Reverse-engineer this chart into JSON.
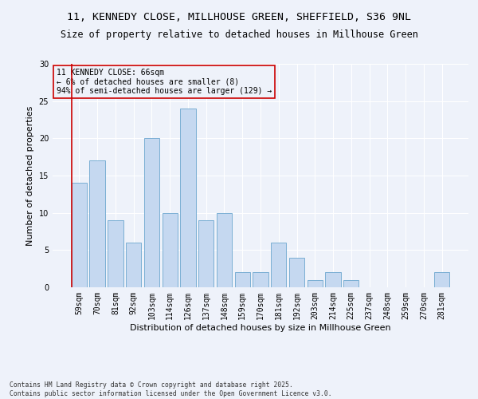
{
  "title1": "11, KENNEDY CLOSE, MILLHOUSE GREEN, SHEFFIELD, S36 9NL",
  "title2": "Size of property relative to detached houses in Millhouse Green",
  "xlabel": "Distribution of detached houses by size in Millhouse Green",
  "ylabel": "Number of detached properties",
  "categories": [
    "59sqm",
    "70sqm",
    "81sqm",
    "92sqm",
    "103sqm",
    "114sqm",
    "126sqm",
    "137sqm",
    "148sqm",
    "159sqm",
    "170sqm",
    "181sqm",
    "192sqm",
    "203sqm",
    "214sqm",
    "225sqm",
    "237sqm",
    "248sqm",
    "259sqm",
    "270sqm",
    "281sqm"
  ],
  "values": [
    14,
    17,
    9,
    6,
    20,
    10,
    24,
    9,
    10,
    2,
    2,
    6,
    4,
    1,
    2,
    1,
    0,
    0,
    0,
    0,
    2
  ],
  "bar_color": "#c5d8f0",
  "bar_edge_color": "#7bafd4",
  "vline_color": "#cc0000",
  "annotation_text": "11 KENNEDY CLOSE: 66sqm\n← 6% of detached houses are smaller (8)\n94% of semi-detached houses are larger (129) →",
  "annotation_box_edge_color": "#cc0000",
  "annotation_fontsize": 7,
  "ylim": [
    0,
    30
  ],
  "yticks": [
    0,
    5,
    10,
    15,
    20,
    25,
    30
  ],
  "title_fontsize1": 9.5,
  "title_fontsize2": 8.5,
  "xlabel_fontsize": 8,
  "ylabel_fontsize": 8,
  "tick_fontsize": 7,
  "footer": "Contains HM Land Registry data © Crown copyright and database right 2025.\nContains public sector information licensed under the Open Government Licence v3.0.",
  "footer_fontsize": 5.8,
  "bg_color": "#eef2fa",
  "grid_color": "#ffffff"
}
